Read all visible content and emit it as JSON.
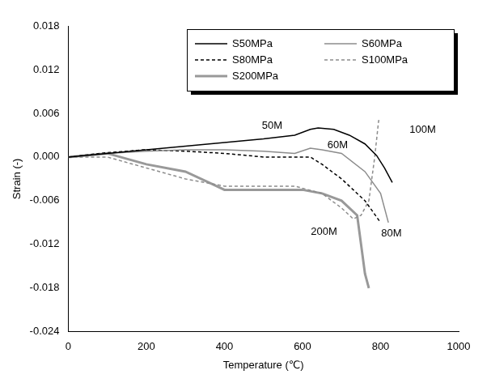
{
  "chart_data": {
    "type": "line",
    "x_label": "Temperature (℃)",
    "y_label": "Strain (-)",
    "xlim": [
      0,
      1000
    ],
    "xticks": [
      0,
      200,
      400,
      600,
      800,
      1000
    ],
    "ylim": [
      -0.024,
      0.018
    ],
    "yticks": [
      -0.024,
      -0.018,
      -0.012,
      -0.006,
      {
        "value": 0,
        "label": "0.000"
      },
      0.006,
      0.012,
      0.018
    ],
    "grid": false,
    "legend": "upper right",
    "series": [
      {
        "name": "S50MPa",
        "color": "#000000",
        "line_style": "solid",
        "x": [
          0,
          100,
          200,
          300,
          400,
          500,
          580,
          620,
          640,
          680,
          720,
          760,
          790,
          810,
          830
        ],
        "values": [
          0,
          0.0005,
          0.001,
          0.0015,
          0.002,
          0.0025,
          0.003,
          0.0038,
          0.004,
          0.0038,
          0.003,
          0.0018,
          0.0002,
          -0.0015,
          -0.0035
        ]
      },
      {
        "name": "S60MPa",
        "color": "#8c8c8c",
        "line_style": "solid",
        "x": [
          0,
          100,
          200,
          300,
          400,
          500,
          580,
          620,
          650,
          700,
          760,
          800,
          820
        ],
        "values": [
          0,
          0.0005,
          0.0008,
          0.001,
          0.001,
          0.0008,
          0.0005,
          0.0012,
          0.001,
          0.0005,
          -0.002,
          -0.005,
          -0.009
        ]
      },
      {
        "name": "S80MPa",
        "color": "#000000",
        "line_style": "dashed",
        "x": [
          0,
          100,
          200,
          300,
          400,
          500,
          580,
          620,
          650,
          700,
          760,
          800
        ],
        "values": [
          0,
          0.0006,
          0.001,
          0.0008,
          0.0005,
          0,
          0,
          0,
          -0.001,
          -0.003,
          -0.006,
          -0.009
        ]
      },
      {
        "name": "S100MPa",
        "color": "#8c8c8c",
        "line_style": "dashed",
        "x": [
          0,
          100,
          200,
          300,
          400,
          500,
          580,
          650,
          700,
          730,
          750,
          770,
          785,
          795,
          800
        ],
        "values": [
          0,
          0,
          -0.0015,
          -0.003,
          -0.004,
          -0.004,
          -0.004,
          -0.005,
          -0.007,
          -0.0085,
          -0.008,
          -0.006,
          0,
          0.005,
          0.005
        ]
      },
      {
        "name": "S200MPa",
        "color": "#999999",
        "line_style": "thick",
        "x": [
          0,
          100,
          200,
          300,
          380,
          400,
          500,
          600,
          650,
          700,
          740,
          750,
          760,
          770
        ],
        "values": [
          0,
          0.0005,
          -0.001,
          -0.002,
          -0.004,
          -0.0045,
          -0.0045,
          -0.0045,
          -0.005,
          -0.006,
          -0.008,
          -0.012,
          -0.016,
          -0.018
        ]
      }
    ],
    "annotations": [
      {
        "text": "50M",
        "x": 522,
        "y": 0.0043
      },
      {
        "text": "60M",
        "x": 690,
        "y": 0.0016
      },
      {
        "text": "100M",
        "x": 908,
        "y": 0.0037
      },
      {
        "text": "200M",
        "x": 655,
        "y": -0.0103
      },
      {
        "text": "80M",
        "x": 828,
        "y": -0.0105
      }
    ]
  }
}
